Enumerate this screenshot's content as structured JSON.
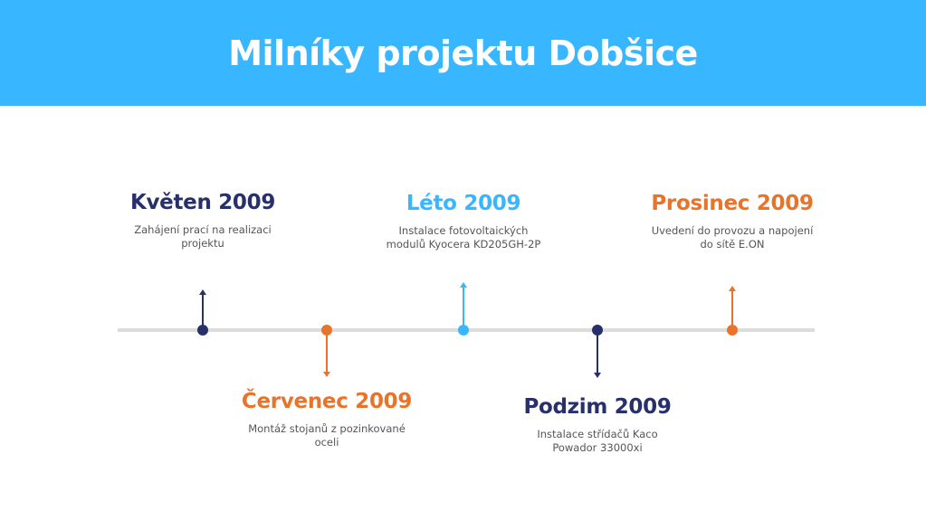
{
  "header": {
    "title": "Milníky projektu Dobšice"
  },
  "colors": {
    "header": "#38b6ff",
    "navy": "#27306b",
    "orange": "#e8742c",
    "blue": "#38b6ff",
    "line": "#dcdcdc"
  },
  "milestones": [
    {
      "title": "Květen 2009",
      "description": "Zahájení prací na realizaci projektu",
      "color": "#27306b",
      "side": "above"
    },
    {
      "title": "Červenec 2009",
      "description": "Montáž stojanů z pozinkované oceli",
      "color": "#e8742c",
      "side": "below"
    },
    {
      "title": "Léto 2009",
      "description": "Instalace fotovoltaických modulů Kyocera KD205GH-2P",
      "color": "#38b6ff",
      "side": "above"
    },
    {
      "title": "Podzim 2009",
      "description": "Instalace střídačů Kaco Powador 33000xi",
      "color": "#27306b",
      "side": "below"
    },
    {
      "title": "Prosinec 2009",
      "description": "Uvedení do provozu a napojení do sítě E.ON",
      "color": "#e8742c",
      "side": "above"
    }
  ]
}
